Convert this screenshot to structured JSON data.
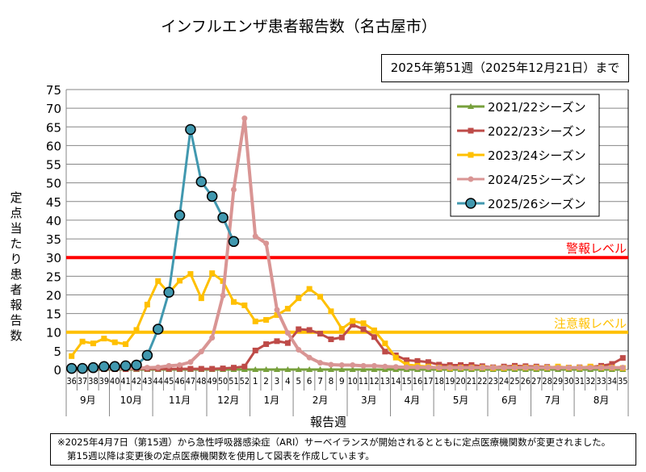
{
  "chart_data": {
    "type": "line",
    "title": "インフルエンザ患者報告数（名古屋市）",
    "subtitle": "2025年第51週（2025年12月21日）まで",
    "ylabel": "定点当たり患者報告数",
    "xlabel": "報告週",
    "ylim": [
      0,
      75
    ],
    "yticks": [
      0,
      5,
      10,
      15,
      20,
      25,
      30,
      35,
      40,
      45,
      50,
      55,
      60,
      65,
      70,
      75
    ],
    "grid": true,
    "legend": "top-right",
    "x": [
      "36",
      "37",
      "38",
      "39",
      "40",
      "41",
      "42",
      "43",
      "44",
      "45",
      "46",
      "47",
      "48",
      "49",
      "50",
      "51",
      "52",
      "1",
      "2",
      "3",
      "4",
      "5",
      "6",
      "7",
      "8",
      "9",
      "10",
      "11",
      "12",
      "13",
      "14",
      "15",
      "16",
      "17",
      "18",
      "19",
      "20",
      "21",
      "22",
      "23",
      "24",
      "25",
      "26",
      "27",
      "28",
      "29",
      "30",
      "31",
      "32",
      "33",
      "34",
      "35"
    ],
    "months": [
      {
        "label": "9月",
        "weeks": 4
      },
      {
        "label": "10月",
        "weeks": 4
      },
      {
        "label": "11月",
        "weeks": 5
      },
      {
        "label": "12月",
        "weeks": 4
      },
      {
        "label": "1月",
        "weeks": 4
      },
      {
        "label": "2月",
        "weeks": 5
      },
      {
        "label": "3月",
        "weeks": 4
      },
      {
        "label": "4月",
        "weeks": 4
      },
      {
        "label": "5月",
        "weeks": 5
      },
      {
        "label": "6月",
        "weeks": 4
      },
      {
        "label": "7月",
        "weeks": 4
      },
      {
        "label": "8月",
        "weeks": 5
      }
    ],
    "thresholds": [
      {
        "label": "警報レベル",
        "value": 30,
        "color": "#ff0000"
      },
      {
        "label": "注意報レベル",
        "value": 10,
        "color": "#ffc000"
      }
    ],
    "series": [
      {
        "name": "2021/22シーズン",
        "color": "#77a03c",
        "marker": "triangle",
        "values": [
          0,
          0,
          0,
          0,
          0,
          0,
          0,
          0,
          0,
          0,
          0,
          0,
          0,
          0,
          0,
          0,
          0,
          0,
          0,
          0,
          0,
          0,
          0,
          0,
          0,
          0,
          0,
          0,
          0,
          0,
          0,
          0,
          0,
          0,
          0,
          0,
          0,
          0,
          0,
          0,
          0,
          0,
          0,
          0,
          0,
          0,
          0,
          0,
          0,
          0,
          0,
          0
        ]
      },
      {
        "name": "2022/23シーズン",
        "color": "#be4b48",
        "marker": "square",
        "values": [
          0.1,
          0.1,
          0.1,
          0.1,
          0.1,
          0.1,
          0.2,
          0.2,
          0.2,
          0.2,
          0.2,
          0.2,
          0.2,
          0.2,
          0.3,
          0.5,
          0.8,
          5.1,
          6.8,
          7.6,
          7.1,
          10.8,
          10.6,
          9.6,
          8.1,
          8.6,
          12.0,
          10.8,
          8.7,
          4.8,
          3.8,
          2.5,
          2.3,
          2.0,
          1.3,
          1.2,
          1.2,
          1.2,
          0.9,
          0.6,
          0.8,
          1.0,
          0.9,
          0.8,
          0.7,
          0.6,
          0.5,
          0.6,
          0.7,
          1.0,
          1.5,
          3.1
        ]
      },
      {
        "name": "2023/24シーズン",
        "color": "#ffc000",
        "marker": "square",
        "values": [
          3.6,
          7.5,
          7.0,
          8.3,
          7.3,
          6.8,
          10.6,
          17.4,
          23.7,
          20.5,
          23.8,
          25.6,
          19.1,
          25.8,
          23.7,
          18.1,
          17.2,
          12.9,
          13.3,
          14.6,
          16.3,
          19.1,
          21.6,
          19.5,
          15.6,
          10.9,
          13.0,
          12.4,
          10.5,
          7.0,
          3.2,
          1.3,
          1.0,
          0.8,
          0.5,
          0.4,
          0.5,
          0.5,
          0.5,
          0.4,
          0.4,
          0.5,
          0.5,
          0.5,
          0.5,
          0.8,
          0.5,
          0.5,
          0.8,
          0.5,
          0.5,
          0.4
        ]
      },
      {
        "name": "2024/25シーズン",
        "color": "#d99594",
        "marker": "circle",
        "values": [
          0.3,
          0.3,
          0.3,
          0.3,
          0.3,
          0.3,
          0.4,
          0.5,
          0.6,
          1.0,
          1.2,
          2.0,
          4.8,
          8.5,
          19.8,
          48.2,
          67.3,
          35.7,
          33.8,
          16.0,
          9.8,
          5.3,
          3.2,
          1.8,
          1.3,
          1.2,
          1.2,
          1.0,
          1.0,
          0.8,
          0.7,
          0.6,
          0.6,
          0.6,
          0.5,
          0.5,
          0.5,
          0.5,
          0.5,
          0.5,
          0.5,
          0.5,
          0.5,
          0.5,
          0.5,
          0.5,
          0.5,
          0.5,
          0.5,
          0.5,
          0.5,
          0.5
        ]
      },
      {
        "name": "2025/26シーズン",
        "color": "#4198af",
        "marker": "big-circle",
        "values": [
          0.3,
          0.3,
          0.5,
          0.8,
          0.8,
          1.0,
          1.2,
          3.8,
          10.8,
          20.7,
          41.3,
          64.3,
          50.3,
          46.4,
          40.7,
          34.3,
          null,
          null,
          null,
          null,
          null,
          null,
          null,
          null,
          null,
          null,
          null,
          null,
          null,
          null,
          null,
          null,
          null,
          null,
          null,
          null,
          null,
          null,
          null,
          null,
          null,
          null,
          null,
          null,
          null,
          null,
          null,
          null,
          null,
          null,
          null,
          null
        ]
      }
    ]
  },
  "footer": {
    "line1": "※2025年4月7日（第15週）から急性呼吸器感染症（ARI）サーベイランスが開始されるとともに定点医療機関数が変更されました。",
    "line2": "第15週以降は変更後の定点医療機関数を使用して図表を作成しています。"
  }
}
